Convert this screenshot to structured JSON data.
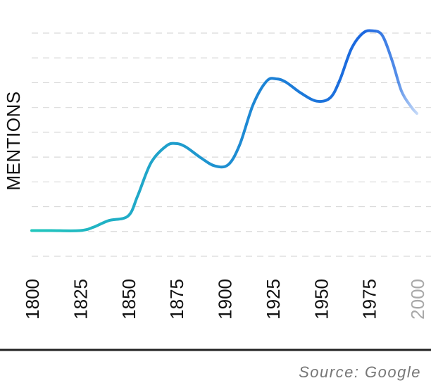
{
  "chart_data": {
    "type": "line",
    "title": "",
    "xlabel": "",
    "ylabel": "MENTIONS",
    "x_ticks": [
      "1800",
      "1825",
      "1850",
      "1875",
      "1900",
      "1925",
      "1950",
      "1975",
      "2000"
    ],
    "xlim": [
      1800,
      2000
    ],
    "ylim": [
      0,
      10
    ],
    "grid": true,
    "grid_lines": 10,
    "series": [
      {
        "x": [
          1800,
          1810,
          1825,
          1832,
          1840,
          1850,
          1855,
          1862,
          1870,
          1875,
          1880,
          1888,
          1895,
          1902,
          1908,
          1915,
          1922,
          1927,
          1932,
          1940,
          1948,
          1955,
          1960,
          1966,
          1972,
          1977,
          1982,
          1987,
          1992,
          1997,
          2000
        ],
        "y": [
          1.15,
          1.15,
          1.15,
          1.3,
          1.6,
          1.8,
          2.7,
          4.2,
          4.95,
          5.05,
          4.9,
          4.4,
          4.05,
          4.1,
          5.0,
          6.8,
          7.85,
          7.95,
          7.8,
          7.3,
          6.95,
          7.1,
          7.9,
          9.3,
          10.0,
          10.1,
          9.9,
          8.8,
          7.4,
          6.7,
          6.4
        ],
        "projected_from": 1990
      }
    ],
    "colors": {
      "line_start": "#22c7bd",
      "line_end": "#1b67e0",
      "line_projection": "#c8dcf9",
      "future_tick": "#a9a9a9"
    }
  },
  "source": "Source: Google"
}
